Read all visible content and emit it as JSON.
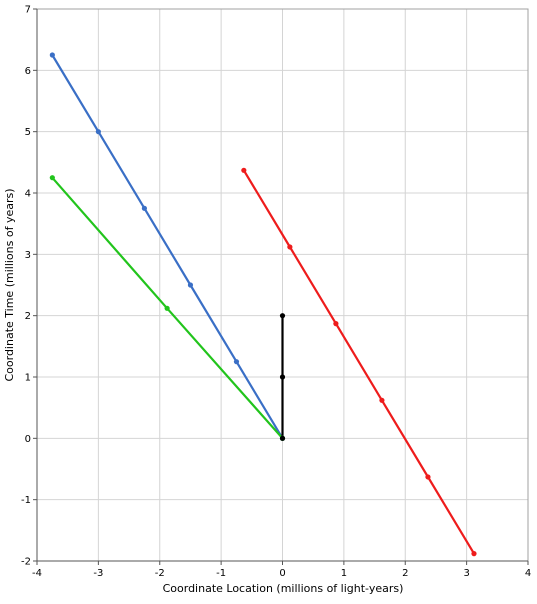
{
  "chart_data": {
    "type": "line",
    "title": "",
    "xlabel": "Coordinate Location (millions of light-years)",
    "ylabel": "Coordinate Time (millions of years)",
    "xlim": [
      -4,
      4
    ],
    "ylim": [
      -2,
      7
    ],
    "xticks": [
      -4,
      -3,
      -2,
      -1,
      0,
      1,
      2,
      3,
      4
    ],
    "yticks": [
      -2,
      -1,
      0,
      1,
      2,
      3,
      4,
      5,
      6,
      7
    ],
    "grid": true,
    "legend": "none",
    "series": [
      {
        "color": "#3a6fc6",
        "x": [
          0,
          -0.75,
          -1.5,
          -2.25,
          -3.0,
          -3.75
        ],
        "y": [
          0,
          1.25,
          2.5,
          3.75,
          5.0,
          6.25
        ]
      },
      {
        "color": "#22c41c",
        "x": [
          0,
          -1.88,
          -3.75
        ],
        "y": [
          0,
          2.12,
          4.25
        ]
      },
      {
        "color": "#000000",
        "x": [
          0,
          0,
          0
        ],
        "y": [
          0,
          1,
          2
        ]
      },
      {
        "color": "#ee1c1c",
        "x": [
          -0.63,
          0.12,
          0.87,
          1.62,
          2.37,
          3.12
        ],
        "y": [
          4.37,
          3.12,
          1.87,
          0.62,
          -0.63,
          -1.88
        ]
      }
    ]
  }
}
